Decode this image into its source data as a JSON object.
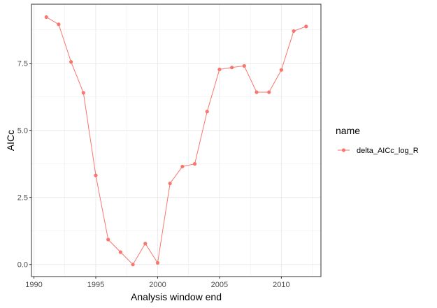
{
  "chart_data": {
    "type": "line",
    "xlabel": "Analysis window end",
    "ylabel": "AICc",
    "xlim": [
      1989.8,
      2013.2
    ],
    "ylim": [
      -0.45,
      9.7
    ],
    "x_ticks": [
      1990,
      1995,
      2000,
      2005,
      2010
    ],
    "x_tick_labels": [
      "1990",
      "1995",
      "2000",
      "2005",
      "2010"
    ],
    "y_ticks": [
      0,
      2.5,
      5,
      7.5
    ],
    "y_tick_labels": [
      "0.0",
      "2.5",
      "5.0",
      "7.5"
    ],
    "grid": true,
    "legend": {
      "title": "name",
      "placement": "right",
      "entries": [
        "delta_AICc_log_R"
      ]
    },
    "series": [
      {
        "name": "delta_AICc_log_R",
        "color": "#F8766D",
        "x": [
          1991,
          1992,
          1993,
          1994,
          1995,
          1996,
          1997,
          1998,
          1999,
          2000,
          2001,
          2002,
          2003,
          2004,
          2005,
          2006,
          2007,
          2008,
          2009,
          2010,
          2011,
          2012
        ],
        "y": [
          9.22,
          8.95,
          7.55,
          6.4,
          3.32,
          0.93,
          0.46,
          0.0,
          0.78,
          0.06,
          3.02,
          3.65,
          3.75,
          5.7,
          7.27,
          7.34,
          7.4,
          6.42,
          6.42,
          7.25,
          8.7,
          8.87
        ]
      }
    ]
  }
}
